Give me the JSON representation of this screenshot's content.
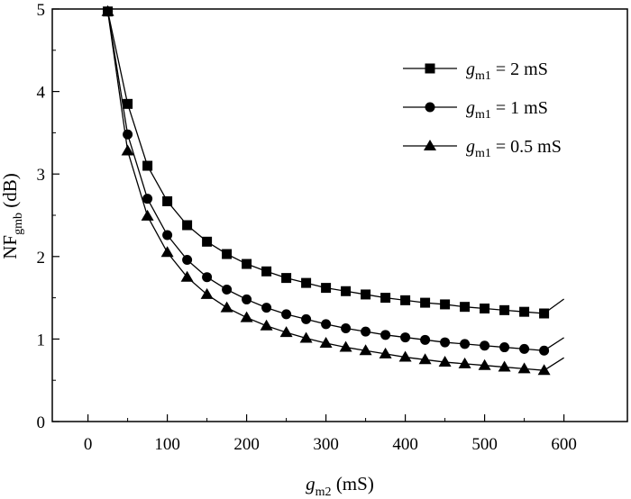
{
  "chart_data": {
    "type": "line",
    "xlabel": {
      "main": "g",
      "sub": "m2",
      "unit": " (mS)"
    },
    "ylabel": {
      "main": "NF",
      "sub": "gmb",
      "unit": " (dB)"
    },
    "xlim": [
      -45,
      680
    ],
    "ylim": [
      0,
      5
    ],
    "xticks": [
      0,
      100,
      200,
      300,
      400,
      500,
      600
    ],
    "yticks": [
      0,
      1,
      2,
      3,
      4,
      5
    ],
    "grid": false,
    "legend_position": "top-right",
    "series": [
      {
        "name": {
          "main": "g",
          "sub": "m1",
          "rest": " = 2 mS"
        },
        "marker": "square",
        "x": [
          25,
          50,
          75,
          100,
          125,
          150,
          175,
          200,
          225,
          250,
          275,
          300,
          325,
          350,
          375,
          400,
          425,
          450,
          475,
          500,
          525,
          550,
          575
        ],
        "y": [
          4.97,
          3.85,
          3.1,
          2.67,
          2.38,
          2.18,
          2.03,
          1.91,
          1.82,
          1.74,
          1.68,
          1.62,
          1.58,
          1.54,
          1.5,
          1.47,
          1.44,
          1.42,
          1.39,
          1.37,
          1.35,
          1.33,
          1.31
        ]
      },
      {
        "name": {
          "main": "g",
          "sub": "m1",
          "rest": " = 1 mS"
        },
        "marker": "circle",
        "x": [
          25,
          50,
          75,
          100,
          125,
          150,
          175,
          200,
          225,
          250,
          275,
          300,
          325,
          350,
          375,
          400,
          425,
          450,
          475,
          500,
          525,
          550,
          575
        ],
        "y": [
          4.97,
          3.48,
          2.7,
          2.26,
          1.96,
          1.75,
          1.6,
          1.48,
          1.38,
          1.3,
          1.24,
          1.18,
          1.13,
          1.09,
          1.05,
          1.02,
          0.99,
          0.96,
          0.94,
          0.92,
          0.9,
          0.88,
          0.86
        ]
      },
      {
        "name": {
          "main": "g",
          "sub": "m1",
          "rest": " = 0.5 mS"
        },
        "marker": "triangle",
        "x": [
          25,
          50,
          75,
          100,
          125,
          150,
          175,
          200,
          225,
          250,
          275,
          300,
          325,
          350,
          375,
          400,
          425,
          450,
          475,
          500,
          525,
          550,
          575
        ],
        "y": [
          4.97,
          3.28,
          2.49,
          2.05,
          1.75,
          1.54,
          1.38,
          1.26,
          1.16,
          1.08,
          1.01,
          0.95,
          0.9,
          0.86,
          0.82,
          0.78,
          0.75,
          0.72,
          0.7,
          0.68,
          0.66,
          0.64,
          0.62
        ]
      }
    ]
  }
}
